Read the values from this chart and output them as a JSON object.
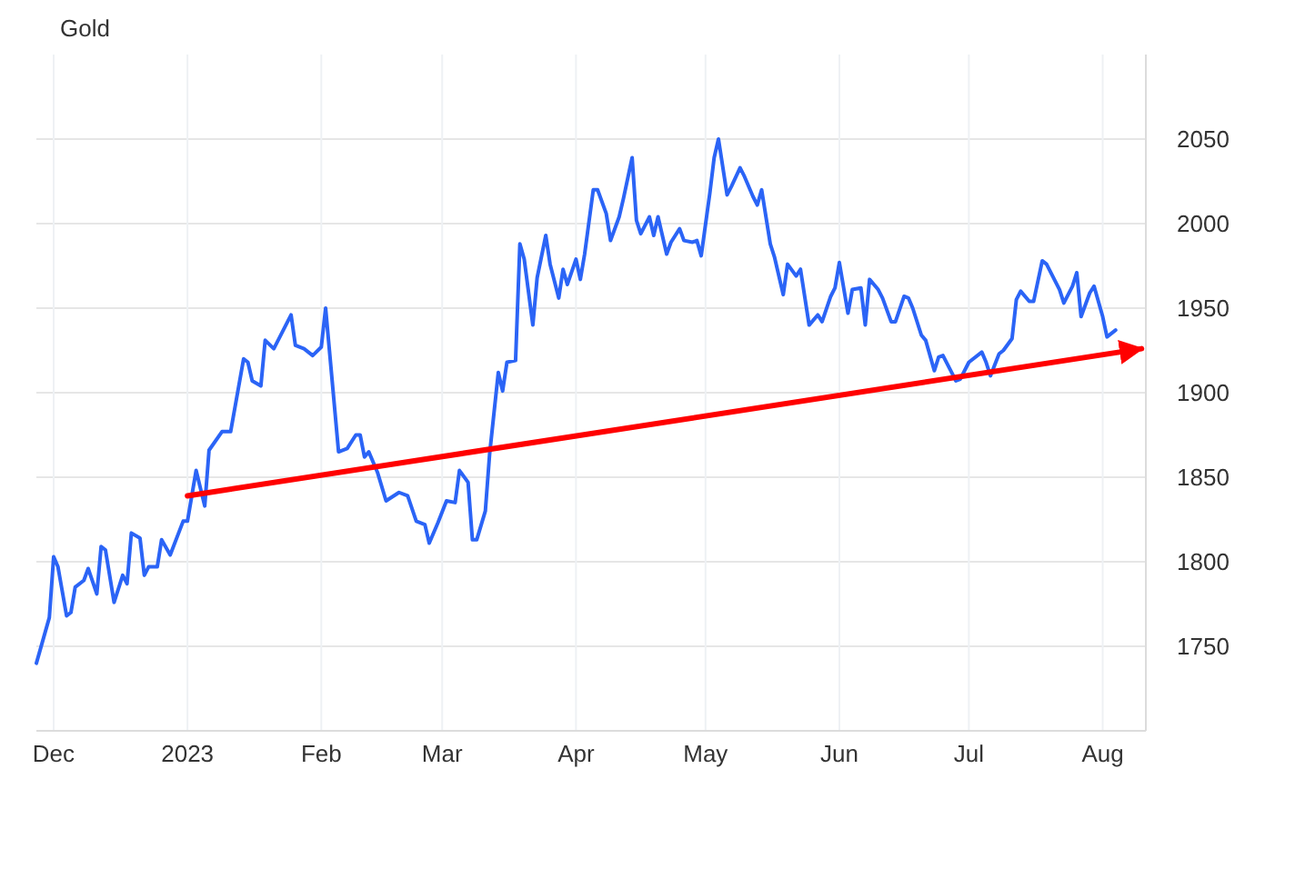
{
  "chart_data": {
    "type": "line",
    "title": "Gold",
    "grid": true,
    "xlim": [
      "2022-11-27",
      "2023-08-11"
    ],
    "ylim": [
      1700,
      2100
    ],
    "xticks": [
      {
        "value": "2022-12-01",
        "label": "Dec"
      },
      {
        "value": "2023-01-01",
        "label": "2023"
      },
      {
        "value": "2023-02-01",
        "label": "Feb"
      },
      {
        "value": "2023-03-01",
        "label": "Mar"
      },
      {
        "value": "2023-04-01",
        "label": "Apr"
      },
      {
        "value": "2023-05-01",
        "label": "May"
      },
      {
        "value": "2023-06-01",
        "label": "Jun"
      },
      {
        "value": "2023-07-01",
        "label": "Jul"
      },
      {
        "value": "2023-08-01",
        "label": "Aug"
      }
    ],
    "yticks": [
      1750,
      1800,
      1850,
      1900,
      1950,
      2000,
      2050
    ],
    "series": [
      {
        "color": "#2b64f6",
        "x": [
          "2022-11-27",
          "2022-11-28",
          "2022-11-30",
          "2022-12-01",
          "2022-12-02",
          "2022-12-04",
          "2022-12-05",
          "2022-12-06",
          "2022-12-08",
          "2022-12-09",
          "2022-12-11",
          "2022-12-12",
          "2022-12-13",
          "2022-12-15",
          "2022-12-17",
          "2022-12-18",
          "2022-12-19",
          "2022-12-21",
          "2022-12-22",
          "2022-12-23",
          "2022-12-25",
          "2022-12-26",
          "2022-12-28",
          "2022-12-31",
          "2023-01-01",
          "2023-01-03",
          "2023-01-05",
          "2023-01-06",
          "2023-01-09",
          "2023-01-11",
          "2023-01-14",
          "2023-01-15",
          "2023-01-16",
          "2023-01-18",
          "2023-01-19",
          "2023-01-21",
          "2023-01-25",
          "2023-01-26",
          "2023-01-28",
          "2023-01-30",
          "2023-02-01",
          "2023-02-02",
          "2023-02-05",
          "2023-02-07",
          "2023-02-09",
          "2023-02-10",
          "2023-02-11",
          "2023-02-12",
          "2023-02-14",
          "2023-02-16",
          "2023-02-19",
          "2023-02-21",
          "2023-02-23",
          "2023-02-25",
          "2023-02-26",
          "2023-02-28",
          "2023-03-02",
          "2023-03-04",
          "2023-03-05",
          "2023-03-07",
          "2023-03-08",
          "2023-03-09",
          "2023-03-11",
          "2023-03-12",
          "2023-03-14",
          "2023-03-15",
          "2023-03-16",
          "2023-03-18",
          "2023-03-19",
          "2023-03-20",
          "2023-03-22",
          "2023-03-23",
          "2023-03-25",
          "2023-03-26",
          "2023-03-28",
          "2023-03-29",
          "2023-03-30",
          "2023-04-01",
          "2023-04-02",
          "2023-04-03",
          "2023-04-05",
          "2023-04-06",
          "2023-04-08",
          "2023-04-09",
          "2023-04-11",
          "2023-04-12",
          "2023-04-14",
          "2023-04-15",
          "2023-04-16",
          "2023-04-18",
          "2023-04-19",
          "2023-04-20",
          "2023-04-22",
          "2023-04-23",
          "2023-04-25",
          "2023-04-26",
          "2023-04-28",
          "2023-04-29",
          "2023-04-30",
          "2023-05-02",
          "2023-05-03",
          "2023-05-04",
          "2023-05-06",
          "2023-05-07",
          "2023-05-09",
          "2023-05-10",
          "2023-05-12",
          "2023-05-13",
          "2023-05-14",
          "2023-05-16",
          "2023-05-17",
          "2023-05-19",
          "2023-05-20",
          "2023-05-22",
          "2023-05-23",
          "2023-05-25",
          "2023-05-27",
          "2023-05-28",
          "2023-05-30",
          "2023-05-31",
          "2023-06-01",
          "2023-06-03",
          "2023-06-04",
          "2023-06-06",
          "2023-06-07",
          "2023-06-08",
          "2023-06-10",
          "2023-06-11",
          "2023-06-13",
          "2023-06-14",
          "2023-06-16",
          "2023-06-17",
          "2023-06-18",
          "2023-06-20",
          "2023-06-21",
          "2023-06-23",
          "2023-06-24",
          "2023-06-25",
          "2023-06-27",
          "2023-06-28",
          "2023-06-29",
          "2023-07-01",
          "2023-07-04",
          "2023-07-05",
          "2023-07-06",
          "2023-07-08",
          "2023-07-09",
          "2023-07-11",
          "2023-07-12",
          "2023-07-13",
          "2023-07-15",
          "2023-07-16",
          "2023-07-18",
          "2023-07-19",
          "2023-07-22",
          "2023-07-23",
          "2023-07-25",
          "2023-07-26",
          "2023-07-27",
          "2023-07-29",
          "2023-07-30",
          "2023-08-01",
          "2023-08-02",
          "2023-08-04"
        ],
        "values": [
          1740,
          1749,
          1767,
          1803,
          1797,
          1768,
          1770,
          1785,
          1789,
          1796,
          1781,
          1809,
          1807,
          1776,
          1792,
          1787,
          1817,
          1814,
          1792,
          1797,
          1797,
          1813,
          1804,
          1824,
          1824,
          1854,
          1833,
          1866,
          1877,
          1877,
          1920,
          1918,
          1907,
          1904,
          1931,
          1926,
          1946,
          1928,
          1926,
          1922,
          1927,
          1950,
          1865,
          1867,
          1875,
          1875,
          1862,
          1865,
          1853,
          1836,
          1841,
          1839,
          1824,
          1822,
          1811,
          1823,
          1836,
          1835,
          1854,
          1847,
          1813,
          1813,
          1830,
          1864,
          1912,
          1901,
          1918,
          1919,
          1988,
          1979,
          1940,
          1968,
          1993,
          1976,
          1956,
          1973,
          1964,
          1979,
          1967,
          1982,
          2020,
          2020,
          2006,
          1990,
          2004,
          2015,
          2039,
          2002,
          1994,
          2004,
          1993,
          2004,
          1982,
          1989,
          1997,
          1990,
          1989,
          1990,
          1981,
          2018,
          2039,
          2050,
          2017,
          2022,
          2033,
          2028,
          2016,
          2011,
          2020,
          1988,
          1980,
          1958,
          1976,
          1969,
          1973,
          1940,
          1946,
          1942,
          1957,
          1962,
          1977,
          1947,
          1961,
          1962,
          1940,
          1967,
          1961,
          1956,
          1942,
          1942,
          1957,
          1956,
          1950,
          1934,
          1931,
          1913,
          1921,
          1922,
          1912,
          1907,
          1908,
          1918,
          1924,
          1918,
          1910,
          1923,
          1925,
          1932,
          1955,
          1960,
          1954,
          1954,
          1978,
          1976,
          1961,
          1953,
          1963,
          1971,
          1945,
          1959,
          1963,
          1945,
          1933,
          1937
        ]
      },
      {
        "type": "line",
        "color": "#ff0000",
        "x": [
          "2023-01-01",
          "2023-08-10"
        ],
        "values": [
          1839,
          1926
        ]
      }
    ]
  }
}
